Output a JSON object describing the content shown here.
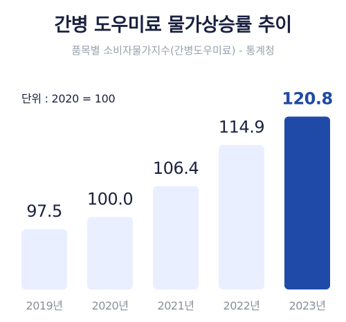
{
  "chart_data": {
    "type": "bar",
    "title": "간병 도우미료 물가상승률 추이",
    "subtitle": "품목별 소비자물가지수(간병도우미료) - 통계청",
    "unit_note": "단위 : 2020 = 100",
    "categories": [
      "2019년",
      "2020년",
      "2021년",
      "2022년",
      "2023년"
    ],
    "values": [
      97.5,
      100.0,
      106.4,
      114.9,
      120.8
    ],
    "value_labels": [
      "97.5",
      "100.0",
      "106.4",
      "114.9",
      "120.8"
    ],
    "highlight_index": 4,
    "ylim": [
      85,
      122
    ],
    "grid": false,
    "colors": {
      "bar": "#e9efff",
      "highlight": "#1f4aa8",
      "label": "#1a2140",
      "category": "#8a8f9a"
    }
  }
}
